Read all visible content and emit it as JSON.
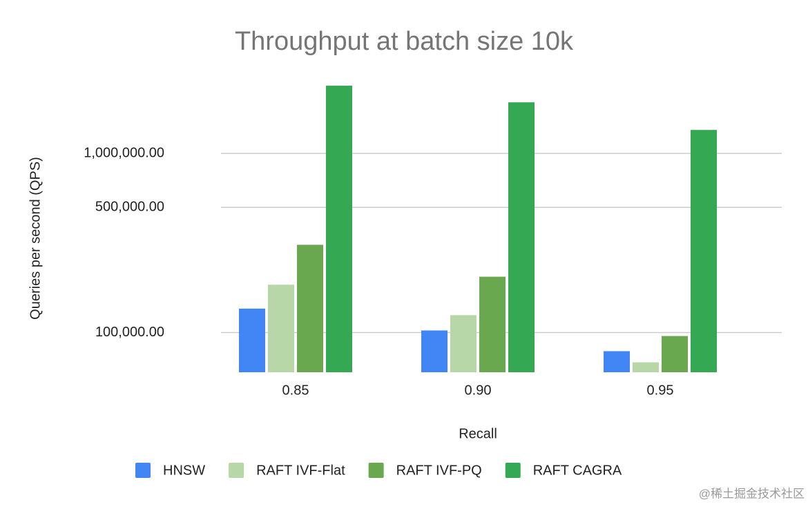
{
  "chart_data": {
    "type": "bar",
    "title": "Throughput at batch size 10k",
    "x_label": "Recall",
    "y_label": "Queries per second (QPS)",
    "categories": [
      "0.85",
      "0.90",
      "0.95"
    ],
    "series": [
      {
        "name": "HNSW",
        "color": "#4285f4",
        "values": [
          136000,
          102700,
          78700
        ]
      },
      {
        "name": "RAFT IVF-Flat",
        "color": "#b7d7a8",
        "values": [
          185000,
          125000,
          68200
        ]
      },
      {
        "name": "RAFT IVF-PQ",
        "color": "#6aa84f",
        "values": [
          309000,
          205000,
          95600
        ]
      },
      {
        "name": "RAFT CAGRA",
        "color": "#34a853",
        "values": [
          2390000,
          1930000,
          1353000
        ]
      }
    ],
    "ylim": [
      60000,
      2500000
    ],
    "yticks": [
      {
        "value": 100000,
        "label": "100,000.00"
      },
      {
        "value": 500000,
        "label": "500,000.00"
      },
      {
        "value": 1000000,
        "label": "1,000,000.00"
      }
    ],
    "log_scale": true,
    "grid": true,
    "legend": "bottom",
    "watermark": "@稀土掘金技术社区"
  }
}
